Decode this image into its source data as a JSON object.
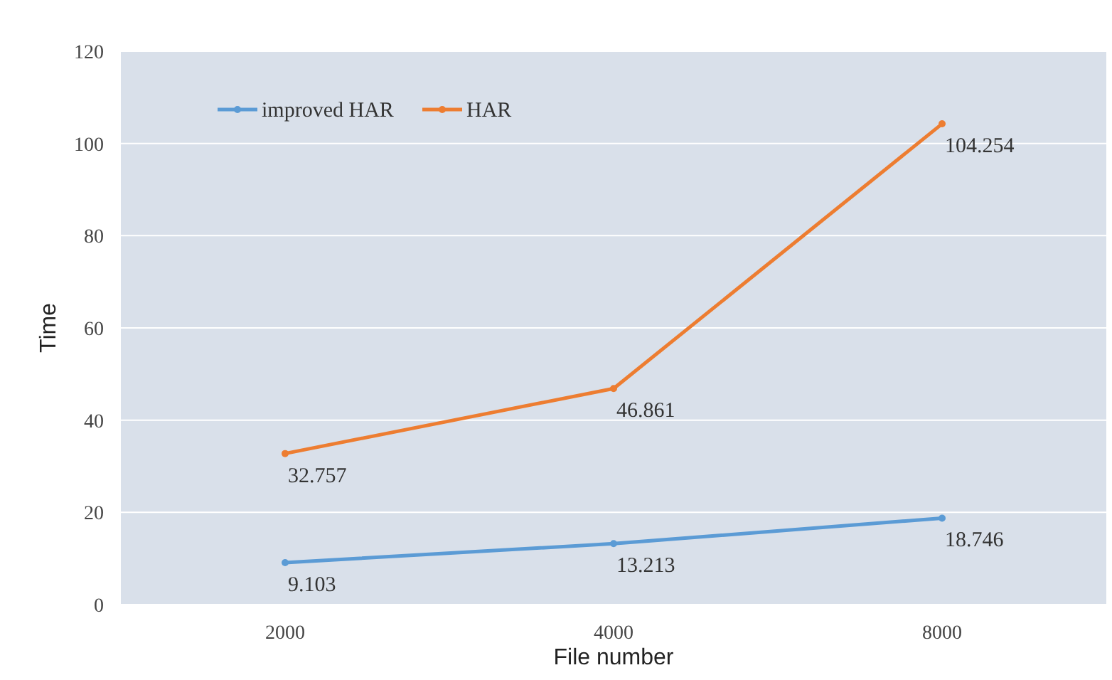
{
  "chart_data": {
    "type": "line",
    "xlabel": "File number",
    "ylabel": "Time",
    "categories": [
      "2000",
      "4000",
      "8000"
    ],
    "series": [
      {
        "name": "improved HAR",
        "color": "#5b9bd5",
        "values": [
          9.103,
          13.213,
          18.746
        ]
      },
      {
        "name": "HAR",
        "color": "#ed7d31",
        "values": [
          32.757,
          46.861,
          104.254
        ]
      }
    ],
    "ylim": [
      0,
      120
    ],
    "yticks": [
      0,
      20,
      40,
      60,
      80,
      100,
      120
    ],
    "grid": "y",
    "legend": "top left",
    "marker": "circle",
    "data_labels": true
  }
}
